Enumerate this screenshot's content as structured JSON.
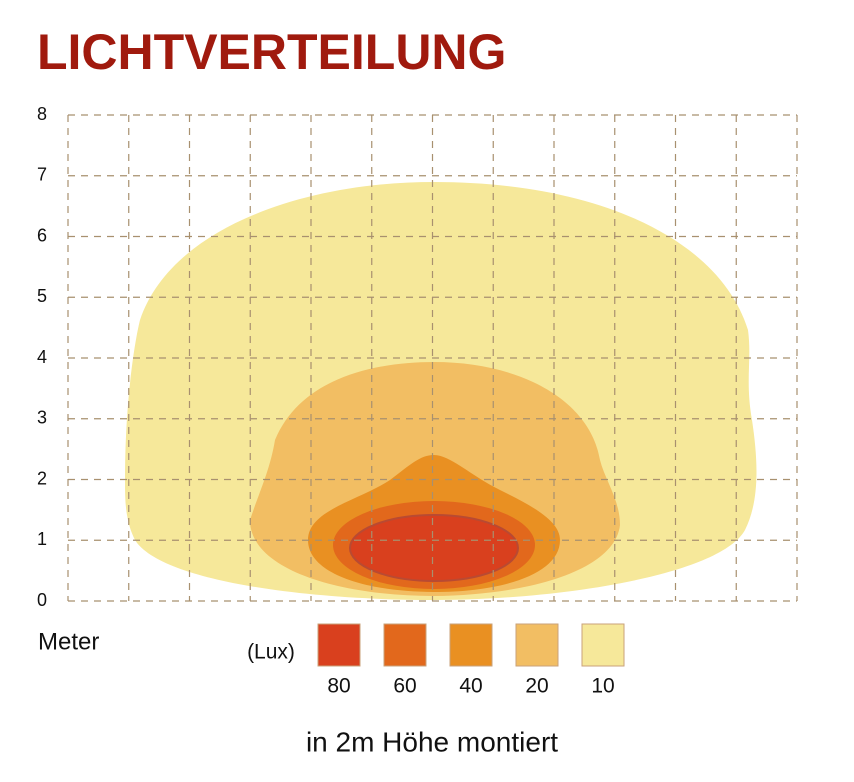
{
  "chart_data": {
    "type": "contour",
    "title": "LICHTVERTEILUNG",
    "ylabel": "Meter",
    "ylim": [
      0,
      8
    ],
    "yticks": [
      0,
      1,
      2,
      3,
      4,
      5,
      6,
      7,
      8
    ],
    "grid": true,
    "legend_title": "(Lux)",
    "levels": [
      80,
      60,
      40,
      20,
      10
    ],
    "colors": [
      "#d9401e",
      "#e2681c",
      "#e99022",
      "#f2be63",
      "#f6e89a"
    ],
    "caption": "in 2m Höhe montiert"
  }
}
